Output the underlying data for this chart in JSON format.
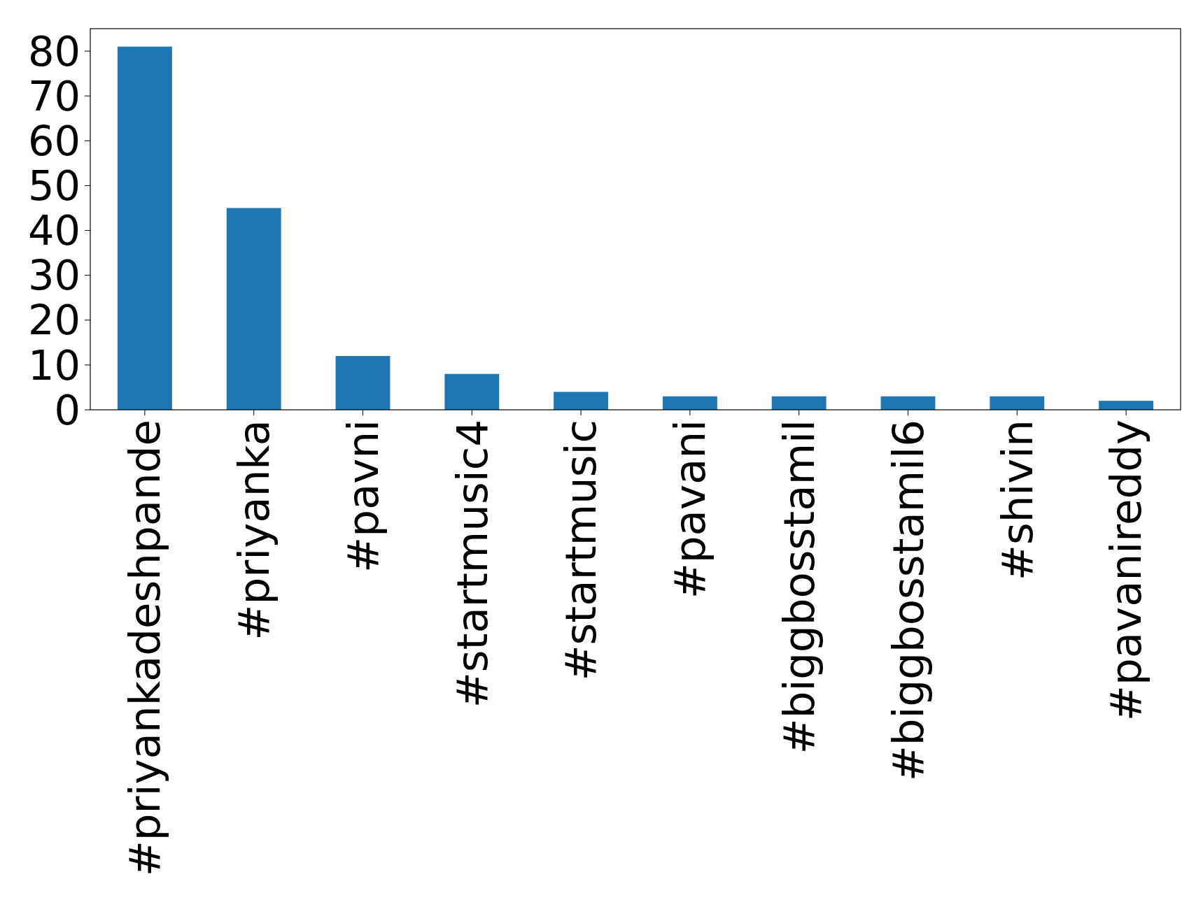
{
  "chart_data": {
    "type": "bar",
    "categories": [
      "#priyankadeshpande",
      "#priyanka",
      "#pavni",
      "#startmusic4",
      "#startmusic",
      "#pavani",
      "#biggbosstamil",
      "#biggbosstamil6",
      "#shivin",
      "#pavanireddy"
    ],
    "values": [
      81,
      45,
      12,
      8,
      4,
      3,
      3,
      3,
      3,
      2
    ],
    "color": "#1f77b4",
    "ylim": [
      0,
      85
    ],
    "yticks": [
      0,
      10,
      20,
      30,
      40,
      50,
      60,
      70,
      80
    ]
  }
}
